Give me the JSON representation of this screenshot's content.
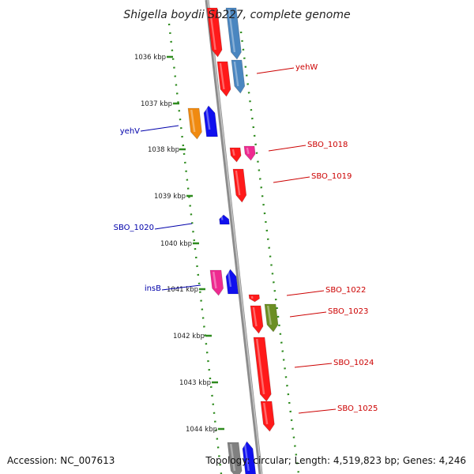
{
  "title": "Shigella boydii Sb227, complete genome",
  "footer": {
    "accession": "Accession: NC_007613",
    "topology": "Topology: circular; Length: 4,519,823 bp; Genes: 4,246"
  },
  "colors": {
    "backbone": "#8c8c8c",
    "ring_dots": "#2e8b1e",
    "label_red": "#cc0000",
    "label_blue": "#0000aa",
    "red": "#ff1a1a",
    "blue": "#1010ee",
    "steel": "#4a86c0",
    "orange": "#f08a10",
    "pink": "#ee2a90",
    "olive": "#6b8e23",
    "gray": "#808080"
  },
  "ticks": [
    "1036 kbp",
    "1037 kbp",
    "1038 kbp",
    "1039 kbp",
    "1040 kbp",
    "1041 kbp",
    "1042 kbp",
    "1043 kbp",
    "1044 kbp"
  ],
  "gene_labels": [
    {
      "text": "yehW",
      "color": "label_red"
    },
    {
      "text": "SBO_1018",
      "color": "label_red"
    },
    {
      "text": "SBO_1019",
      "color": "label_red"
    },
    {
      "text": "SBO_1022",
      "color": "label_red"
    },
    {
      "text": "SBO_1023",
      "color": "label_red"
    },
    {
      "text": "SBO_1024",
      "color": "label_red"
    },
    {
      "text": "SBO_1025",
      "color": "label_red"
    },
    {
      "text": "yehV",
      "color": "label_blue"
    },
    {
      "text": "SBO_1020",
      "color": "label_blue"
    },
    {
      "text": "insB",
      "color": "label_blue"
    }
  ]
}
